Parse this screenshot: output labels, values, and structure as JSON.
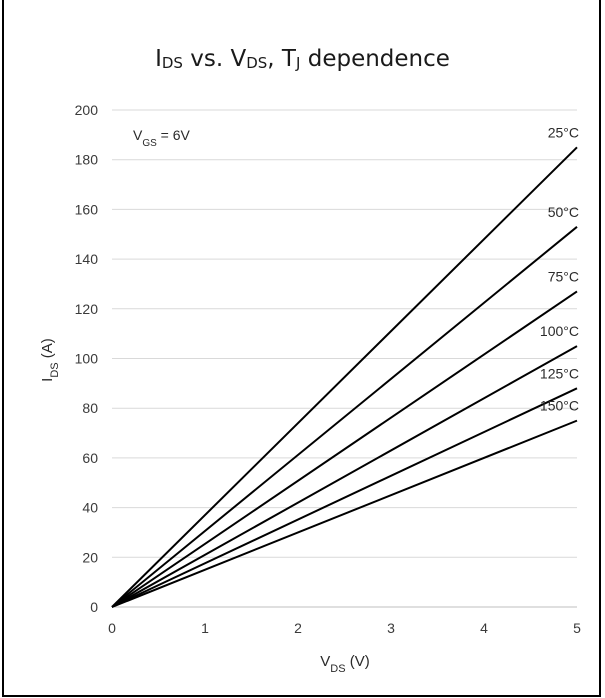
{
  "chart_data": {
    "type": "line",
    "title_main": "I",
    "title_sub1": "DS",
    "title_mid": " vs. V",
    "title_sub2": "DS",
    "title_mid2": ", T",
    "title_sub3": "J",
    "title_end": " dependence",
    "xlabel_main": "V",
    "xlabel_sub": "DS",
    "xlabel_unit": " (V)",
    "ylabel_main": "I",
    "ylabel_sub": "DS",
    "ylabel_unit": " (A)",
    "annotation_main": "V",
    "annotation_sub": "GS",
    "annotation_rest": " = 6V",
    "xlim": [
      0,
      5
    ],
    "ylim": [
      0,
      200
    ],
    "xticks": [
      0,
      1,
      2,
      3,
      4,
      5
    ],
    "yticks": [
      0,
      20,
      40,
      60,
      80,
      100,
      120,
      140,
      160,
      180,
      200
    ],
    "grid": "horizontal",
    "line_color": "#000000",
    "grid_color": "#d9d9d9",
    "series": [
      {
        "name": "25°C",
        "x": [
          0,
          5
        ],
        "y": [
          0,
          185
        ]
      },
      {
        "name": "50°C",
        "x": [
          0,
          5
        ],
        "y": [
          0,
          153
        ]
      },
      {
        "name": "75°C",
        "x": [
          0,
          5
        ],
        "y": [
          0,
          127
        ]
      },
      {
        "name": "100°C",
        "x": [
          0,
          5
        ],
        "y": [
          0,
          105
        ]
      },
      {
        "name": "125°C",
        "x": [
          0,
          5
        ],
        "y": [
          0,
          88
        ]
      },
      {
        "name": "150°C",
        "x": [
          0,
          5
        ],
        "y": [
          0,
          75
        ]
      }
    ]
  }
}
